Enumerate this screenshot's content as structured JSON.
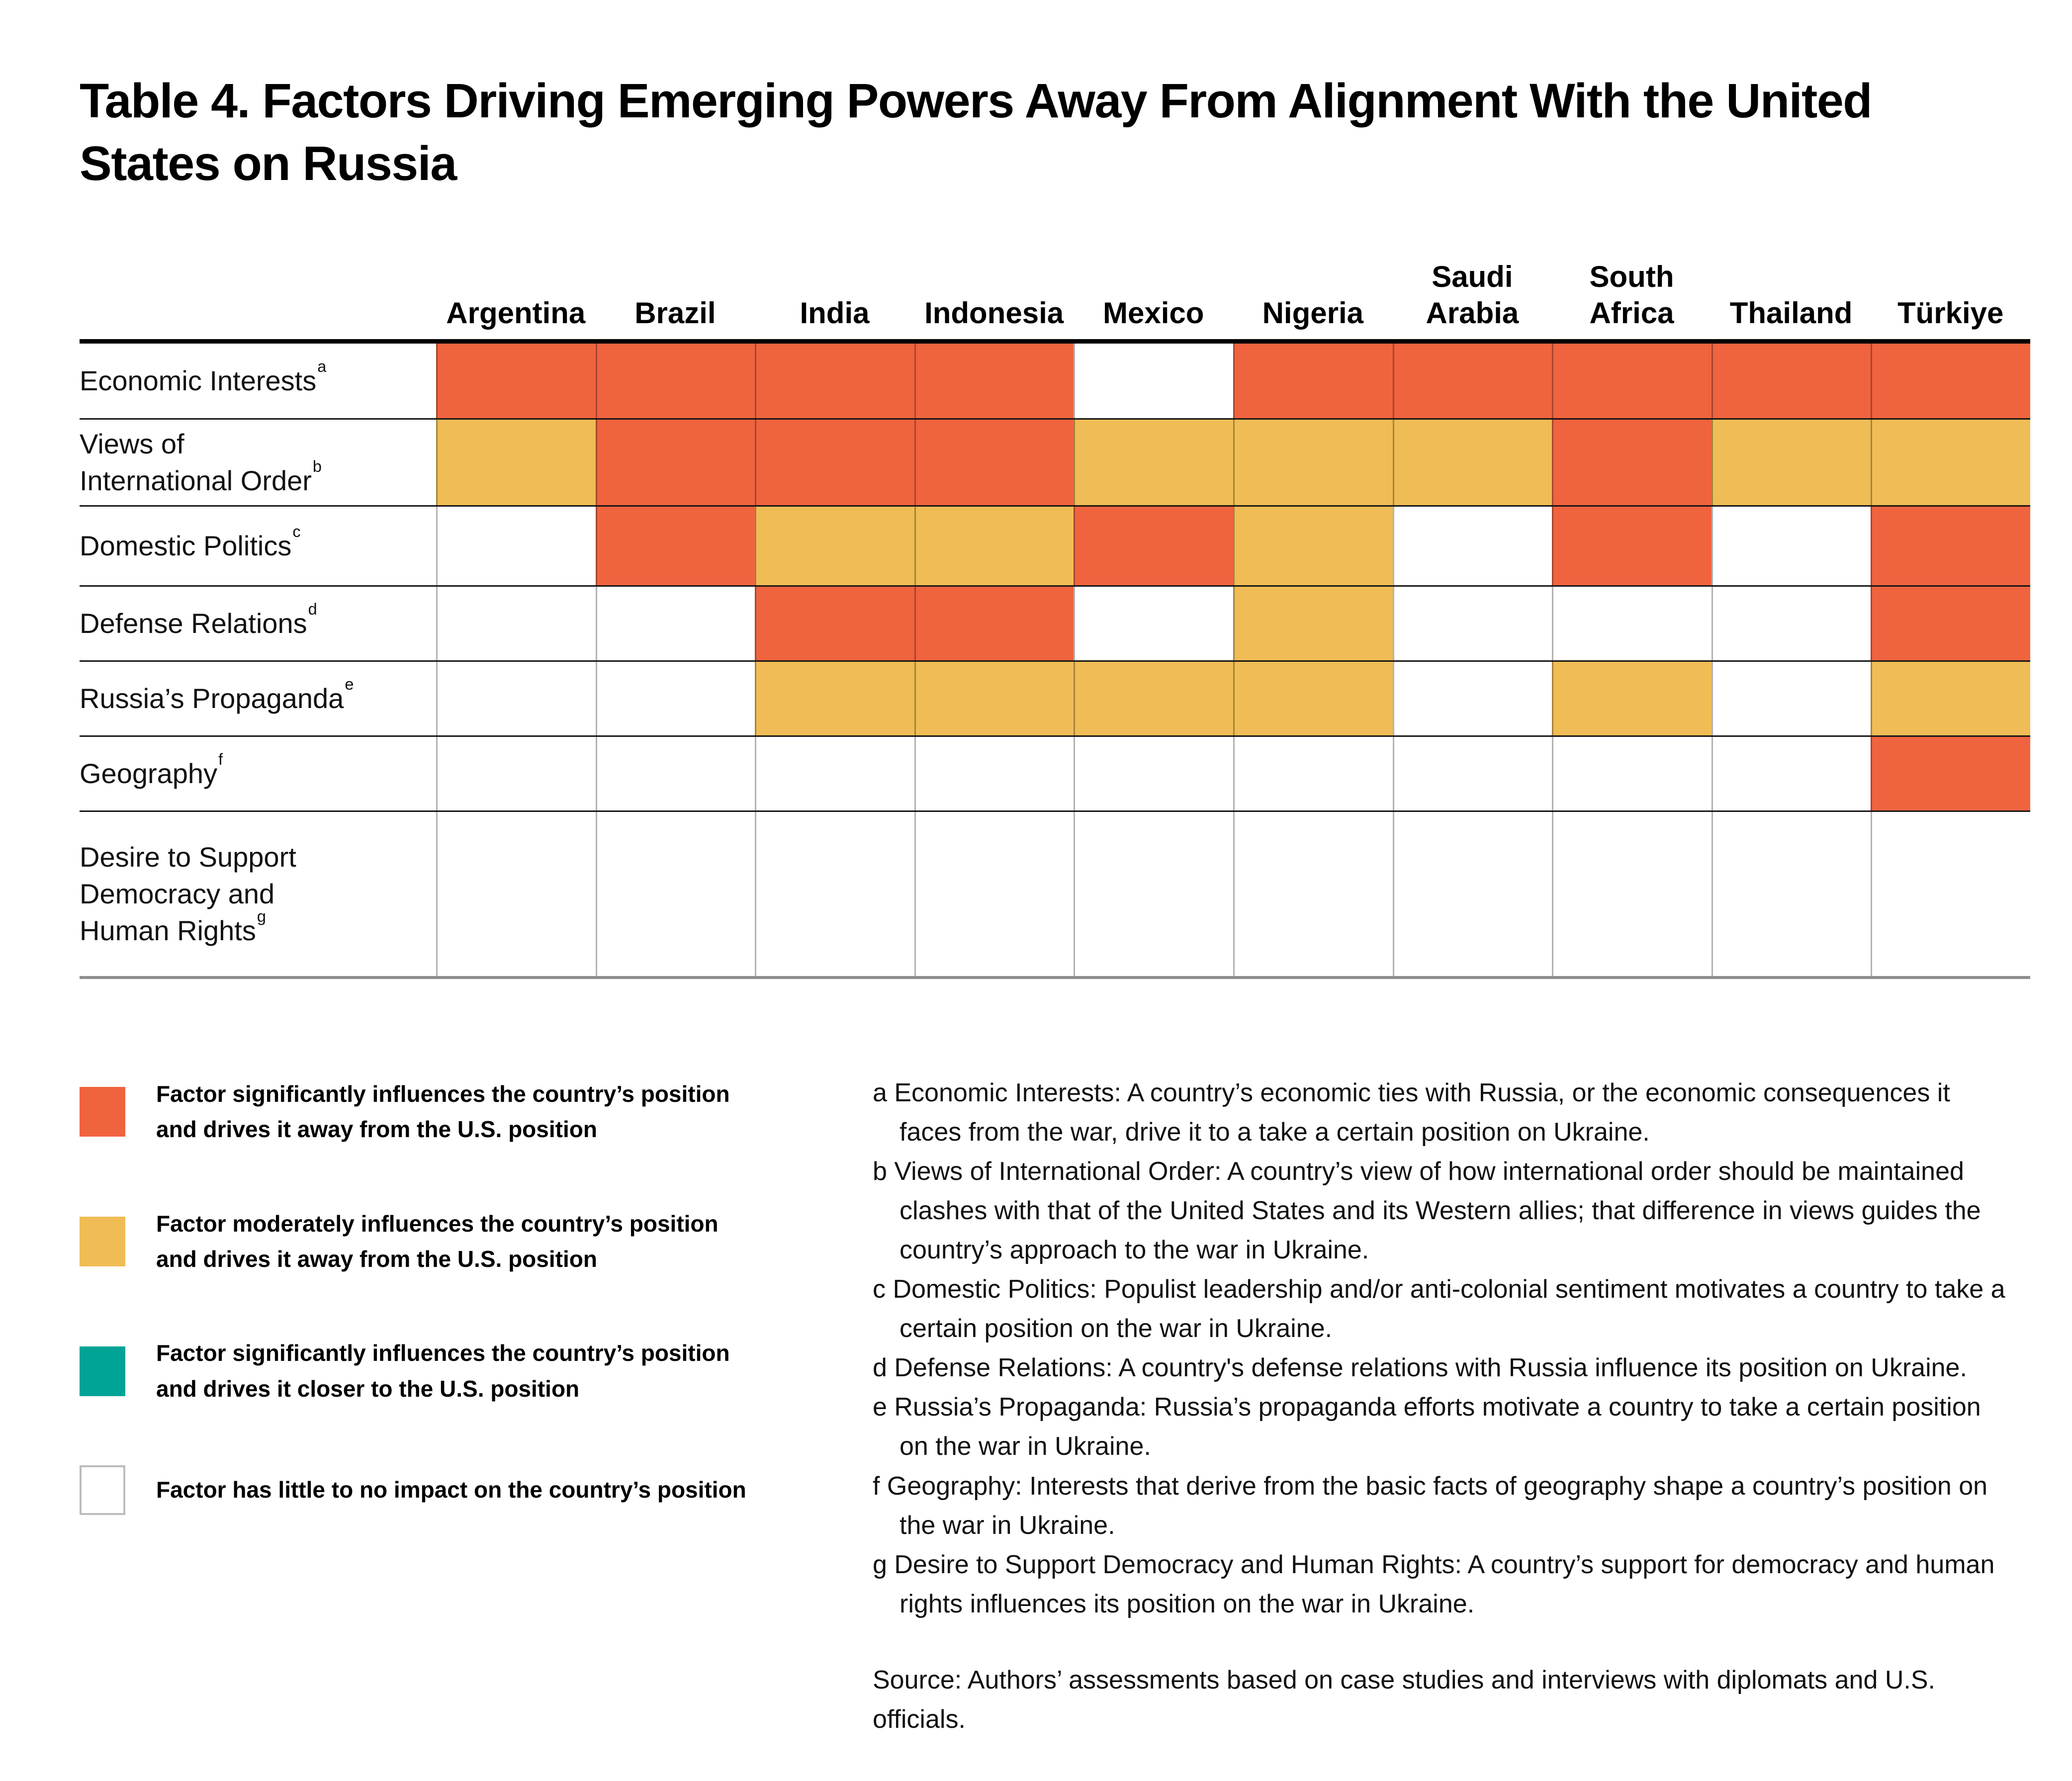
{
  "title": "Table 4. Factors Driving Emerging Powers Away From Alignment With the United States on Russia",
  "chart_data": {
    "type": "heatmap",
    "title": "Table 4. Factors Driving Emerging Powers Away From Alignment With the United States on Russia",
    "columns": [
      "Argentina",
      "Brazil",
      "India",
      "Indonesia",
      "Mexico",
      "Nigeria",
      "Saudi Arabia",
      "South Africa",
      "Thailand",
      "Türkiye"
    ],
    "rows": [
      {
        "label": "Economic Interests",
        "note": "a",
        "values": [
          "significant-away",
          "significant-away",
          "significant-away",
          "significant-away",
          "none",
          "significant-away",
          "significant-away",
          "significant-away",
          "significant-away",
          "significant-away"
        ]
      },
      {
        "label": "Views of International Order",
        "note": "b",
        "values": [
          "moderate-away",
          "significant-away",
          "significant-away",
          "significant-away",
          "moderate-away",
          "moderate-away",
          "moderate-away",
          "significant-away",
          "moderate-away",
          "moderate-away"
        ]
      },
      {
        "label": "Domestic Politics",
        "note": "c",
        "values": [
          "none",
          "significant-away",
          "moderate-away",
          "moderate-away",
          "significant-away",
          "moderate-away",
          "none",
          "significant-away",
          "none",
          "significant-away"
        ]
      },
      {
        "label": "Defense Relations",
        "note": "d",
        "values": [
          "none",
          "none",
          "significant-away",
          "significant-away",
          "none",
          "moderate-away",
          "none",
          "none",
          "none",
          "significant-away"
        ]
      },
      {
        "label": "Russia’s Propaganda",
        "note": "e",
        "values": [
          "none",
          "none",
          "moderate-away",
          "moderate-away",
          "moderate-away",
          "moderate-away",
          "none",
          "moderate-away",
          "none",
          "moderate-away"
        ]
      },
      {
        "label": "Geography",
        "note": "f",
        "values": [
          "none",
          "none",
          "none",
          "none",
          "none",
          "none",
          "none",
          "none",
          "none",
          "significant-away"
        ]
      },
      {
        "label": "Desire to Support Democracy and Human Rights",
        "note": "g",
        "values": [
          "none",
          "none",
          "none",
          "none",
          "none",
          "none",
          "none",
          "none",
          "none",
          "none"
        ]
      }
    ],
    "legend": [
      {
        "key": "significant-away",
        "color": "#F0633F",
        "label": "Factor significantly influences the country’s position\nand drives it away from the U.S. position"
      },
      {
        "key": "moderate-away",
        "color": "#F0BC55",
        "label": "Factor moderately influences the country’s position\nand drives it away from the U.S. position"
      },
      {
        "key": "significant-closer",
        "color": "#00A496",
        "label": "Factor significantly influences the country’s position\nand drives it closer to the U.S. position"
      },
      {
        "key": "none",
        "color": "#FFFFFF",
        "label": "Factor has little to no impact on the country’s position"
      }
    ]
  },
  "row_label_display": {
    "Views of International Order": "Views of\nInternational Order",
    "Desire to Support Democracy and Human Rights": "Desire to Support\nDemocracy and\nHuman Rights"
  },
  "footnotes": [
    {
      "marker": "a",
      "text": "Economic Interests: A country’s economic ties with Russia, or the economic consequences it faces from the war, drive it to a take a certain position on Ukraine."
    },
    {
      "marker": "b",
      "text": "Views of International Order: A country’s view of how international order should be maintained clashes with that of the United States and its Western allies; that difference in views guides the country’s approach to the war in Ukraine."
    },
    {
      "marker": "c",
      "text": "Domestic Politics: Populist leadership and/or anti-colonial sentiment motivates a country to take a certain position on the war in Ukraine."
    },
    {
      "marker": "d",
      "text": "Defense Relations: A country's defense relations with Russia influence its position on Ukraine."
    },
    {
      "marker": "e",
      "text": "Russia’s Propaganda: Russia’s propaganda efforts motivate a country to take a certain position on the war in Ukraine."
    },
    {
      "marker": "f",
      "text": "Geography: Interests that derive from the basic facts of geography shape a country’s position on the war in Ukraine."
    },
    {
      "marker": "g",
      "text": "Desire to Support Democracy and Human Rights: A country’s support for democracy and human rights influences its position on the war in Ukraine."
    }
  ],
  "source": "Source: Authors’ assessments based on case studies and interviews with diplomats and U.S. officials."
}
